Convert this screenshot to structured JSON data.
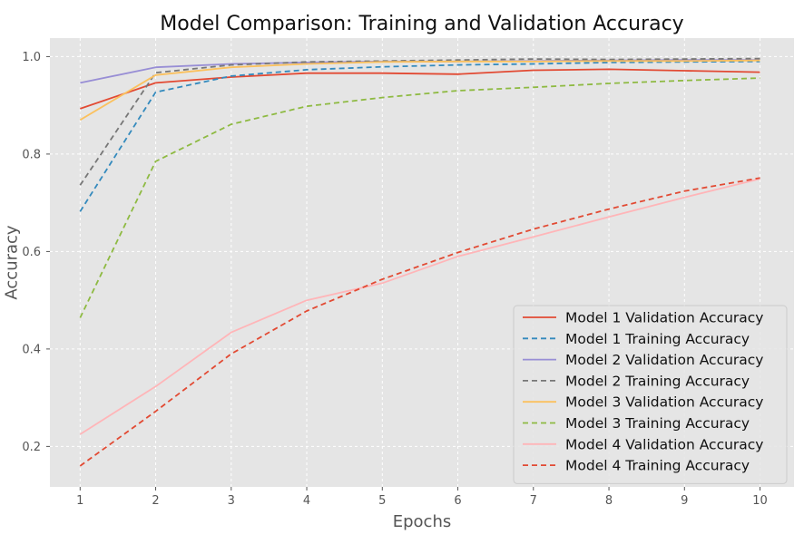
{
  "chart_data": {
    "type": "line",
    "title": "Model Comparison: Training and Validation Accuracy",
    "xlabel": "Epochs",
    "ylabel": "Accuracy",
    "x": [
      1,
      2,
      3,
      4,
      5,
      6,
      7,
      8,
      9,
      10
    ],
    "xlim": [
      0.6,
      10.45
    ],
    "ylim": [
      0.117,
      1.038
    ],
    "xticks": [
      1,
      2,
      3,
      4,
      5,
      6,
      7,
      8,
      9,
      10
    ],
    "yticks": [
      0.2,
      0.4,
      0.6,
      0.8,
      1.0
    ],
    "ytick_labels": [
      "0.2",
      "0.4",
      "0.6",
      "0.8",
      "1.0"
    ],
    "grid": true,
    "legend_position": "bottom-right",
    "background": "#e5e5e5",
    "series": [
      {
        "name": "Model 1 Validation Accuracy",
        "color": "#E24A33",
        "style": "solid",
        "values": [
          0.893,
          0.946,
          0.958,
          0.966,
          0.966,
          0.964,
          0.972,
          0.974,
          0.971,
          0.968
        ]
      },
      {
        "name": "Model 1 Training Accuracy",
        "color": "#348ABD",
        "style": "dashed",
        "values": [
          0.682,
          0.927,
          0.96,
          0.973,
          0.979,
          0.983,
          0.985,
          0.988,
          0.989,
          0.99
        ]
      },
      {
        "name": "Model 2 Validation Accuracy",
        "color": "#988ED5",
        "style": "solid",
        "values": [
          0.946,
          0.978,
          0.985,
          0.988,
          0.99,
          0.99,
          0.991,
          0.992,
          0.993,
          0.993
        ]
      },
      {
        "name": "Model 2 Training Accuracy",
        "color": "#777777",
        "style": "dashed",
        "values": [
          0.736,
          0.967,
          0.983,
          0.989,
          0.991,
          0.993,
          0.995,
          0.994,
          0.995,
          0.996
        ]
      },
      {
        "name": "Model 3 Validation Accuracy",
        "color": "#FBC15E",
        "style": "solid",
        "values": [
          0.87,
          0.962,
          0.978,
          0.985,
          0.989,
          0.99,
          0.99,
          0.991,
          0.991,
          0.992
        ]
      },
      {
        "name": "Model 3 Training Accuracy",
        "color": "#8EBA42",
        "style": "dashed",
        "values": [
          0.464,
          0.785,
          0.861,
          0.898,
          0.916,
          0.93,
          0.937,
          0.945,
          0.951,
          0.956
        ]
      },
      {
        "name": "Model 4 Validation Accuracy",
        "color": "#FFB5B8",
        "style": "solid",
        "values": [
          0.225,
          0.323,
          0.434,
          0.5,
          0.535,
          0.59,
          0.63,
          0.671,
          0.711,
          0.749
        ]
      },
      {
        "name": "Model 4 Training Accuracy",
        "color": "#E24A33",
        "style": "dashed",
        "values": [
          0.16,
          0.272,
          0.39,
          0.478,
          0.543,
          0.598,
          0.646,
          0.687,
          0.724,
          0.751
        ]
      }
    ]
  }
}
